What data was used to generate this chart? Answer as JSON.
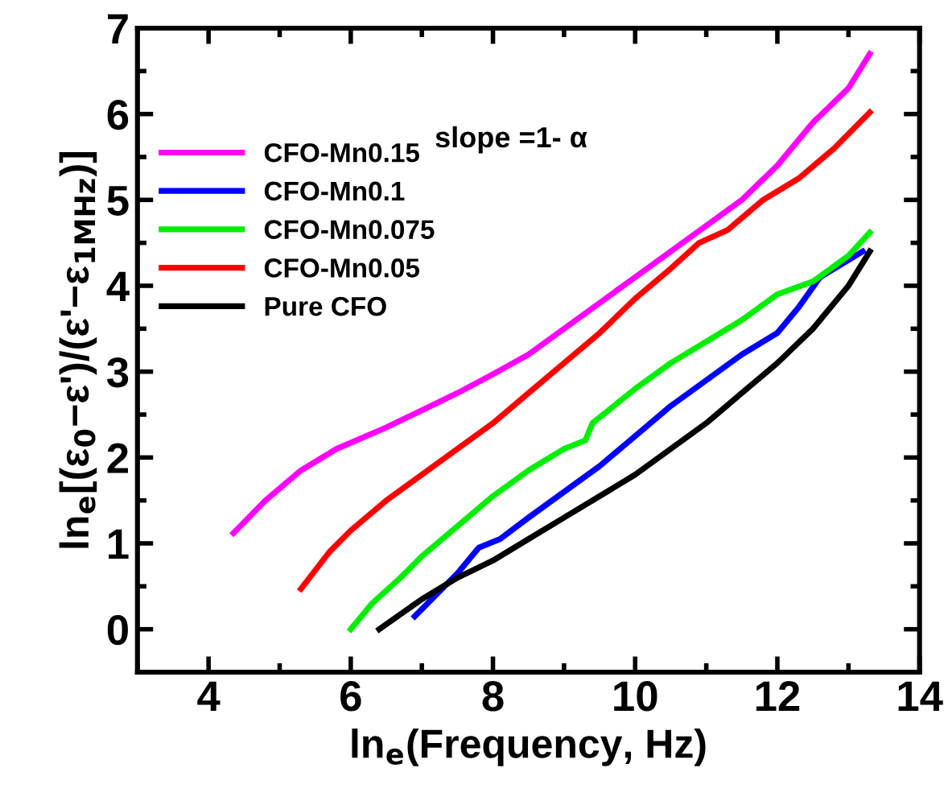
{
  "chart_data": {
    "type": "line",
    "xlabel": "ln$_{e}$(Frequency, Hz)",
    "ylabel": "ln$_{e}$[(ε$_{0}$−ε')/(ε'−ε$_{1MHz}$)]",
    "annotations": [
      "slope =1- α"
    ],
    "xlim": [
      3,
      14
    ],
    "xticks": [
      4,
      6,
      8,
      10,
      12,
      14
    ],
    "ylim": [
      -0.5,
      7
    ],
    "yticks": [
      0,
      1,
      2,
      3,
      4,
      5,
      6,
      7
    ],
    "grid": false,
    "legend": "top left",
    "marker": "none",
    "line_style": "solid",
    "series": [
      {
        "name": "CFO-Mn0.15",
        "color": "#ff00ff",
        "x": [
          4.35,
          4.8,
          5.3,
          5.8,
          6.5,
          7,
          7.5,
          8,
          8.5,
          9,
          9.5,
          10,
          10.5,
          11,
          11.5,
          12,
          12.5,
          13,
          13.3
        ],
        "values": [
          1.12,
          1.5,
          1.85,
          2.1,
          2.35,
          2.55,
          2.75,
          2.97,
          3.2,
          3.5,
          3.8,
          4.1,
          4.4,
          4.7,
          5.0,
          5.4,
          5.9,
          6.3,
          6.7
        ]
      },
      {
        "name": "CFO-Mn0.1",
        "color": "#0000ff",
        "x": [
          6.9,
          7.2,
          7.5,
          7.8,
          8.1,
          8.5,
          9,
          9.5,
          10,
          10.5,
          11,
          11.5,
          12,
          12.3,
          12.6,
          13.2
        ],
        "values": [
          0.15,
          0.4,
          0.65,
          0.95,
          1.05,
          1.3,
          1.6,
          1.9,
          2.25,
          2.6,
          2.9,
          3.2,
          3.45,
          3.75,
          4.1,
          4.4
        ]
      },
      {
        "name": "CFO-Mn0.075",
        "color": "#00ee00",
        "x": [
          6,
          6.3,
          6.7,
          7,
          7.5,
          8,
          8.5,
          9,
          9.3,
          9.4,
          10,
          10.5,
          11,
          11.5,
          12,
          12.5,
          13,
          13.3
        ],
        "values": [
          0.0,
          0.3,
          0.6,
          0.85,
          1.2,
          1.55,
          1.85,
          2.1,
          2.2,
          2.4,
          2.8,
          3.1,
          3.35,
          3.6,
          3.9,
          4.05,
          4.35,
          4.62
        ]
      },
      {
        "name": "CFO-Mn0.05",
        "color": "#ff0000",
        "x": [
          5.3,
          5.7,
          6,
          6.5,
          7,
          7.5,
          8,
          8.5,
          9,
          9.5,
          10,
          10.5,
          10.9,
          11.3,
          11.8,
          12.3,
          12.8,
          13.3
        ],
        "values": [
          0.47,
          0.9,
          1.15,
          1.5,
          1.8,
          2.1,
          2.4,
          2.75,
          3.1,
          3.45,
          3.85,
          4.2,
          4.5,
          4.65,
          5.0,
          5.25,
          5.6,
          6.02
        ]
      },
      {
        "name": "Pure CFO",
        "color": "#000000",
        "x": [
          6.4,
          7,
          7.5,
          8,
          8.5,
          9,
          9.5,
          10,
          10.5,
          11,
          11.5,
          12,
          12.5,
          13,
          13.3
        ],
        "values": [
          0.0,
          0.35,
          0.6,
          0.8,
          1.05,
          1.3,
          1.55,
          1.8,
          2.1,
          2.4,
          2.75,
          3.1,
          3.5,
          4.0,
          4.4
        ]
      }
    ]
  }
}
